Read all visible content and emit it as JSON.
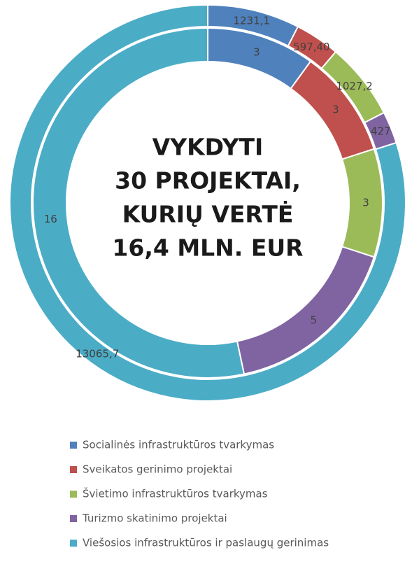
{
  "chart_data": {
    "type": "double-donut",
    "annotations": [
      "VYKDYTI",
      "30 PROJEKTAI,",
      "KURIŲ VERTĖ",
      "16,4 MLN. EUR"
    ],
    "categories": [
      "Socialinės infrastruktūros tvarkymas",
      "Sveikatos gerinimo projektai",
      "Švietimo infrastruktūros tvarkymas",
      "Turizmo skatinimo projektai",
      "Viešosios infrastruktūros ir paslaugų gerinimas"
    ],
    "colors": [
      "#4f81bd",
      "#c0504d",
      "#9bbb59",
      "#8064a2",
      "#4bacc6"
    ],
    "series": [
      {
        "values": [
          1231.1,
          597.4,
          1027.2,
          427,
          13065.7
        ],
        "value_labels": [
          "1231,1",
          "597,40",
          "1027,2",
          "427",
          "13065,7"
        ]
      },
      {
        "values": [
          3,
          3,
          3,
          5,
          16
        ]
      }
    ]
  }
}
